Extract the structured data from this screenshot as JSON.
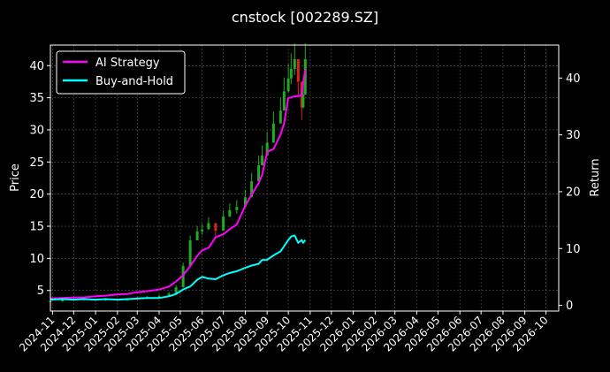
{
  "colors": {
    "background": "#000000",
    "axis": "#ffffff",
    "text": "#ffffff",
    "grid": "#5a5a5a",
    "candle_up": "#22aa22",
    "candle_down": "#dd2222",
    "ai_strategy": "#ff00ff",
    "buy_and_hold": "#00ffff"
  },
  "chart_data": {
    "type": "line",
    "title": "cnstock [002289.SZ]",
    "ylabel": "Price",
    "y2label": "Return",
    "grid": true,
    "legend_position": "top-left",
    "x_ticks": [
      "2024-11",
      "2024-12",
      "2025-01",
      "2025-02",
      "2025-03",
      "2025-04",
      "2025-05",
      "2025-06",
      "2025-07",
      "2025-08",
      "2025-09",
      "2025-10",
      "2025-11",
      "2025-12",
      "2026-01",
      "2026-02",
      "2026-03",
      "2026-04",
      "2026-05",
      "2026-06",
      "2026-07",
      "2026-08",
      "2026-09",
      "2026-10"
    ],
    "xlim": [
      "2024-10-29",
      "2026-10-19"
    ],
    "y_ticks": [
      "5",
      "10",
      "15",
      "20",
      "25",
      "30",
      "35",
      "40"
    ],
    "ylim": [
      1.8,
      43.2
    ],
    "y2_ticks": [
      "0",
      "10",
      "20",
      "30",
      "40"
    ],
    "y2lim": [
      -1.0,
      45.8
    ],
    "series": [
      {
        "name": "AI Strategy",
        "axis": "y2",
        "x": [
          "2024-10-29",
          "2024-11-15",
          "2024-12-01",
          "2024-12-15",
          "2025-01-01",
          "2025-01-15",
          "2025-02-01",
          "2025-02-15",
          "2025-03-01",
          "2025-03-15",
          "2025-04-01",
          "2025-04-15",
          "2025-04-25",
          "2025-05-05",
          "2025-05-15",
          "2025-05-25",
          "2025-06-01",
          "2025-06-10",
          "2025-06-20",
          "2025-07-01",
          "2025-07-10",
          "2025-07-20",
          "2025-08-01",
          "2025-08-10",
          "2025-08-20",
          "2025-08-25",
          "2025-09-01",
          "2025-09-10",
          "2025-09-20",
          "2025-09-25",
          "2025-10-01",
          "2025-10-05",
          "2025-10-10",
          "2025-10-15",
          "2025-10-20",
          "2025-10-22",
          "2025-10-25"
        ],
        "y": [
          1.2,
          1.3,
          1.4,
          1.4,
          1.6,
          1.7,
          1.9,
          2.0,
          2.3,
          2.5,
          2.8,
          3.3,
          4.2,
          5.3,
          6.9,
          8.7,
          9.7,
          10.1,
          12.0,
          12.5,
          13.4,
          14.2,
          17.5,
          19.5,
          21.5,
          23.0,
          27.0,
          27.5,
          30.0,
          32.0,
          36.5,
          36.6,
          36.8,
          36.8,
          37.0,
          39.0,
          41.5
        ]
      },
      {
        "name": "Buy-and-Hold",
        "axis": "y2",
        "x": [
          "2024-10-29",
          "2024-11-15",
          "2024-12-01",
          "2024-12-15",
          "2025-01-01",
          "2025-01-15",
          "2025-02-01",
          "2025-02-15",
          "2025-03-01",
          "2025-03-15",
          "2025-04-01",
          "2025-04-15",
          "2025-04-25",
          "2025-05-05",
          "2025-05-15",
          "2025-05-25",
          "2025-06-01",
          "2025-06-10",
          "2025-06-20",
          "2025-07-01",
          "2025-07-10",
          "2025-07-20",
          "2025-08-01",
          "2025-08-10",
          "2025-08-20",
          "2025-08-25",
          "2025-09-01",
          "2025-09-10",
          "2025-09-20",
          "2025-09-25",
          "2025-10-01",
          "2025-10-05",
          "2025-10-10",
          "2025-10-15",
          "2025-10-20",
          "2025-10-22",
          "2025-10-25"
        ],
        "y": [
          1.0,
          1.1,
          1.0,
          1.1,
          1.0,
          1.1,
          1.0,
          1.1,
          1.2,
          1.3,
          1.3,
          1.6,
          2.0,
          2.8,
          3.3,
          4.5,
          5.0,
          4.7,
          4.6,
          5.3,
          5.7,
          6.0,
          6.6,
          7.0,
          7.3,
          8.0,
          8.0,
          8.8,
          9.5,
          10.4,
          11.5,
          12.1,
          12.3,
          11.0,
          11.5,
          11.0,
          11.5
        ]
      },
      {
        "name": "Price",
        "type": "candlestick",
        "axis": "y",
        "x": [
          "2024-10-29",
          "2024-11-15",
          "2024-12-01",
          "2024-12-15",
          "2025-01-01",
          "2025-01-15",
          "2025-02-01",
          "2025-02-15",
          "2025-03-01",
          "2025-03-15",
          "2025-04-01",
          "2025-04-15",
          "2025-04-25",
          "2025-05-05",
          "2025-05-15",
          "2025-05-25",
          "2025-06-01",
          "2025-06-10",
          "2025-06-20",
          "2025-07-01",
          "2025-07-10",
          "2025-07-20",
          "2025-08-01",
          "2025-08-10",
          "2025-08-20",
          "2025-08-25",
          "2025-09-01",
          "2025-09-10",
          "2025-09-20",
          "2025-09-25",
          "2025-10-01",
          "2025-10-05",
          "2025-10-10",
          "2025-10-15",
          "2025-10-20",
          "2025-10-22",
          "2025-10-25"
        ],
        "y": [
          3.3,
          3.5,
          3.7,
          3.6,
          3.5,
          3.6,
          3.5,
          3.6,
          3.8,
          3.9,
          4.1,
          4.5,
          5.5,
          8.8,
          12.8,
          14.2,
          14.5,
          15.5,
          14.3,
          16.5,
          17.5,
          18.0,
          19.5,
          22.0,
          24.5,
          26.0,
          28.0,
          31.0,
          33.0,
          36.0,
          38.0,
          39.5,
          41.0,
          37.5,
          33.5,
          35.5,
          41.0
        ]
      }
    ]
  }
}
